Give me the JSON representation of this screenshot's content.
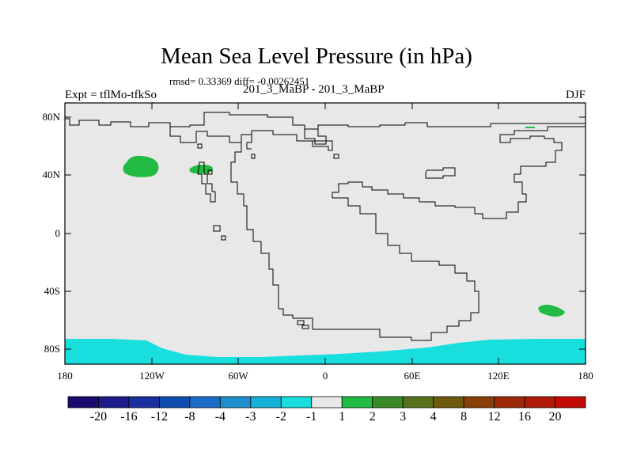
{
  "title": "Mean Sea Level Pressure (in hPa)",
  "stats": "rmsd= 0.33369 diff= -0.00262451",
  "experiment": "Expt = tflMo-tfkSo",
  "comparison": "201_3_MaBP - 201_3_MaBP",
  "season": "DJF",
  "lat_ticks": [
    "80N",
    "40N",
    "0",
    "40S",
    "80S"
  ],
  "lon_ticks": [
    "180",
    "120W",
    "60W",
    "0",
    "60E",
    "120E",
    "180"
  ],
  "colorbar": {
    "labels": [
      "-20",
      "-16",
      "-12",
      "-8",
      "-4",
      "-3",
      "-2",
      "-1",
      "1",
      "2",
      "3",
      "4",
      "8",
      "12",
      "16",
      "20"
    ],
    "colors": [
      "#1c0a6e",
      "#1d1a8c",
      "#1a2fa0",
      "#0f4cb0",
      "#1a6cc8",
      "#1e8fcc",
      "#14b0d8",
      "#18dedd",
      "#e8e8e8",
      "#22bb44",
      "#3a8a28",
      "#56731c",
      "#6e5a0c",
      "#8a4008",
      "#9e2806",
      "#b01a08",
      "#c40a06"
    ]
  },
  "palette": {
    "land": "#e8e8e8",
    "coast": "#000000",
    "positive_anomaly": "#22bb44",
    "negative_anomaly": "#18dedd"
  }
}
